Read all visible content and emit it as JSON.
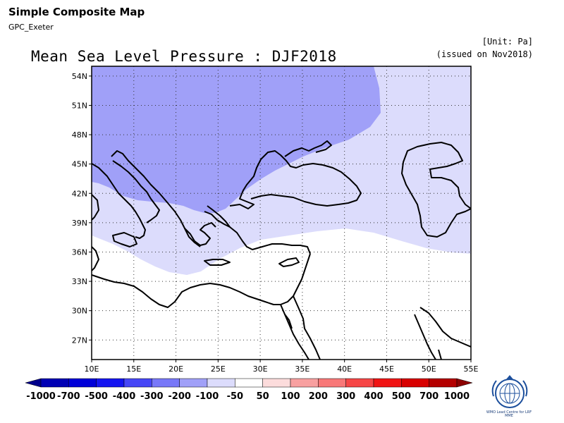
{
  "header": {
    "app_title": "Simple Composite Map",
    "source": "GPC_Exeter",
    "map_title": "Mean Sea Level Pressure : DJF2018",
    "unit": "[Unit: Pa]",
    "issued": "(issued on Nov2018)"
  },
  "map": {
    "lon_range": [
      10,
      55
    ],
    "lat_range": [
      25,
      55
    ],
    "lat_ticks": [
      {
        "value": 54,
        "label": "54N"
      },
      {
        "value": 51,
        "label": "51N"
      },
      {
        "value": 48,
        "label": "48N"
      },
      {
        "value": 45,
        "label": "45N"
      },
      {
        "value": 42,
        "label": "42N"
      },
      {
        "value": 39,
        "label": "39N"
      },
      {
        "value": 36,
        "label": "36N"
      },
      {
        "value": 33,
        "label": "33N"
      },
      {
        "value": 30,
        "label": "30N"
      },
      {
        "value": 27,
        "label": "27N"
      }
    ],
    "lon_ticks": [
      {
        "value": 10,
        "label": "10E"
      },
      {
        "value": 15,
        "label": "15E"
      },
      {
        "value": 20,
        "label": "20E"
      },
      {
        "value": 25,
        "label": "25E"
      },
      {
        "value": 30,
        "label": "30E"
      },
      {
        "value": 35,
        "label": "35E"
      },
      {
        "value": 40,
        "label": "40E"
      },
      {
        "value": 45,
        "label": "45E"
      },
      {
        "value": 50,
        "label": "50E"
      },
      {
        "value": 55,
        "label": "55E"
      }
    ],
    "grid": "dotted",
    "shading": [
      {
        "range": "-200 to -100",
        "color": "#a0a0f8",
        "region": "north-west"
      },
      {
        "range": "-100 to -50",
        "color": "#dcdcfc",
        "region": "central band"
      }
    ]
  },
  "colorbar": {
    "labels": [
      "-1000",
      "-700",
      "-500",
      "-400",
      "-300",
      "-200",
      "-100",
      "-50",
      "50",
      "100",
      "200",
      "300",
      "400",
      "500",
      "700",
      "1000"
    ],
    "colors": [
      "#00008c",
      "#0000b4",
      "#0000d8",
      "#1414f0",
      "#4646f6",
      "#7878f8",
      "#a0a0f8",
      "#dcdcfc",
      "#ffffff",
      "#fcdcdc",
      "#f8a0a0",
      "#f87878",
      "#f64646",
      "#f01414",
      "#d80000",
      "#b40000",
      "#8c0000"
    ]
  },
  "logo": {
    "icon": "wmo-emblem-icon",
    "text": "WMO Lead Centre for LRF MME"
  }
}
